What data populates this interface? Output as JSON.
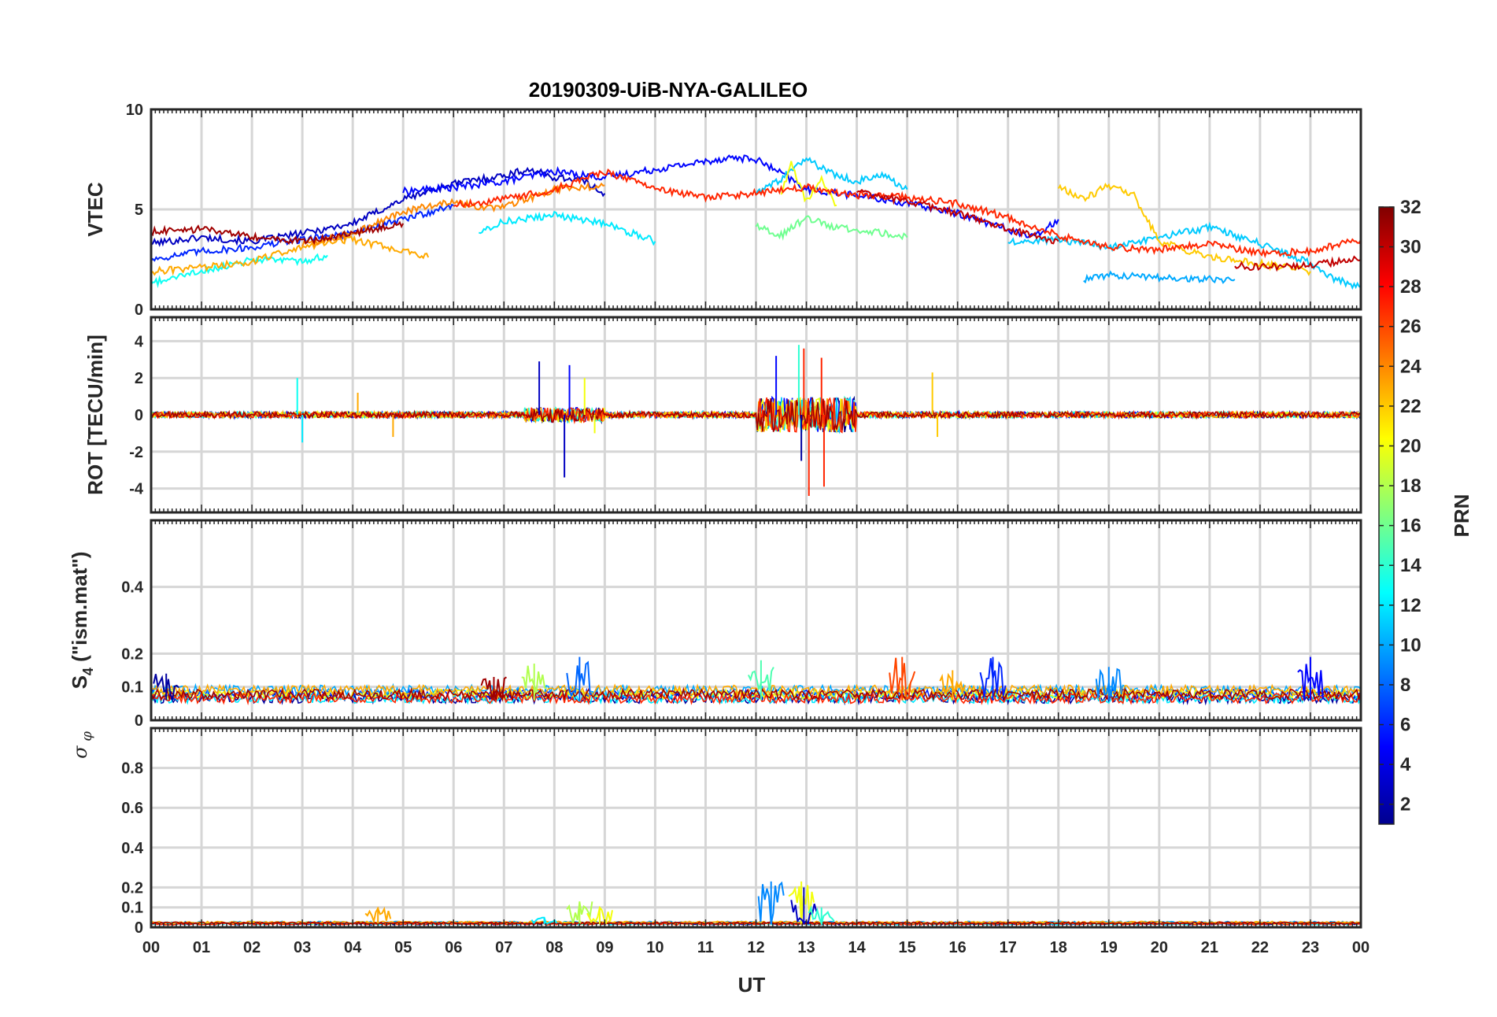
{
  "figure": {
    "title": "20190309-UiB-NYA-GALILEO",
    "xlabel": "UT",
    "x_ticks": [
      "00",
      "01",
      "02",
      "03",
      "04",
      "05",
      "06",
      "07",
      "08",
      "09",
      "10",
      "11",
      "12",
      "13",
      "14",
      "15",
      "16",
      "17",
      "18",
      "19",
      "20",
      "21",
      "22",
      "23",
      "00"
    ]
  },
  "colorbar": {
    "label": "PRN",
    "range": [
      1,
      32
    ],
    "ticks": [
      "2",
      "4",
      "6",
      "8",
      "10",
      "12",
      "14",
      "16",
      "18",
      "20",
      "22",
      "24",
      "26",
      "28",
      "30",
      "32"
    ],
    "colormap": "jet"
  },
  "chart_data": [
    {
      "type": "line",
      "title": "20190309-UiB-NYA-GALILEO",
      "ylabel": "VTEC",
      "xlabel": "",
      "xlim": [
        0,
        24
      ],
      "ylim": [
        0,
        10
      ],
      "y_ticks": [
        "0",
        "5",
        "10"
      ],
      "grid": true,
      "series": [
        {
          "prn": 3,
          "x": [
            0,
            1,
            2,
            3,
            4,
            5,
            6,
            7,
            7.5,
            8,
            8.5,
            9
          ],
          "y": [
            3.3,
            3.6,
            3.4,
            3.8,
            4.3,
            5.5,
            6.3,
            6.7,
            7.0,
            6.6,
            6.5,
            5.8
          ]
        },
        {
          "prn": 5,
          "x": [
            5,
            6,
            7,
            8,
            9,
            10,
            11,
            11.5,
            12,
            12.5,
            13,
            14,
            15,
            16,
            17,
            17.5,
            18
          ],
          "y": [
            5.9,
            6.1,
            6.4,
            6.9,
            6.6,
            7.0,
            7.4,
            7.6,
            7.5,
            6.8,
            6.0,
            5.7,
            5.3,
            4.8,
            4.0,
            3.6,
            4.5
          ]
        },
        {
          "prn": 6,
          "x": [
            0,
            1,
            2,
            3,
            4,
            5,
            6
          ],
          "y": [
            2.5,
            2.9,
            3.1,
            3.5,
            3.8,
            4.5,
            5.2
          ]
        },
        {
          "prn": 10,
          "x": [
            18.5,
            19,
            20,
            21,
            21.5
          ],
          "y": [
            1.5,
            1.7,
            1.6,
            1.5,
            1.5
          ]
        },
        {
          "prn": 13,
          "x": [
            0,
            1,
            2,
            3,
            3.5
          ],
          "y": [
            1.3,
            1.9,
            2.5,
            2.4,
            2.7
          ]
        },
        {
          "prn": 12,
          "x": [
            6.5,
            7,
            8,
            9,
            10
          ],
          "y": [
            3.9,
            4.4,
            4.7,
            4.3,
            3.4
          ]
        },
        {
          "prn": 11,
          "x": [
            12,
            12.5,
            13,
            13.5,
            14,
            14.5,
            15
          ],
          "y": [
            5.8,
            6.5,
            7.5,
            6.8,
            6.4,
            6.7,
            6.0
          ]
        },
        {
          "prn": 11,
          "x": [
            17,
            18,
            19,
            20,
            21,
            22,
            23,
            23.5,
            24
          ],
          "y": [
            3.4,
            3.5,
            3.1,
            3.6,
            4.1,
            3.3,
            2.3,
            1.5,
            1.1
          ]
        },
        {
          "prn": 16,
          "x": [
            12,
            12.5,
            13,
            13.5,
            14,
            14.5,
            15
          ],
          "y": [
            4.2,
            3.7,
            4.6,
            4.1,
            4.0,
            3.8,
            3.6
          ]
        },
        {
          "prn": 20,
          "x": [
            12.5,
            12.7,
            13,
            13.3,
            13.6
          ],
          "y": [
            5.8,
            7.3,
            5.4,
            6.5,
            5.2
          ]
        },
        {
          "prn": 22,
          "x": [
            18,
            18.5,
            19,
            19.5,
            20,
            21,
            22,
            23
          ],
          "y": [
            6.1,
            5.5,
            6.2,
            5.7,
            3.4,
            2.6,
            2.3,
            1.9
          ]
        },
        {
          "prn": 23,
          "x": [
            0,
            1,
            2,
            3,
            4,
            5,
            5.5
          ],
          "y": [
            1.9,
            2.1,
            2.4,
            3.1,
            3.5,
            2.9,
            2.6
          ]
        },
        {
          "prn": 24,
          "x": [
            3,
            4,
            5,
            6,
            6.5,
            7,
            8,
            9
          ],
          "y": [
            3.2,
            3.8,
            4.9,
            5.4,
            5.1,
            5.1,
            6.0,
            6.2
          ]
        },
        {
          "prn": 27,
          "x": [
            6,
            7,
            8,
            9,
            10,
            11,
            12,
            13,
            14,
            15,
            16,
            17,
            18,
            19,
            20,
            21,
            22,
            23,
            24
          ],
          "y": [
            5.2,
            5.5,
            6.0,
            6.9,
            6.0,
            5.6,
            5.8,
            6.1,
            5.7,
            5.6,
            5.3,
            4.6,
            3.7,
            3.1,
            3.0,
            3.3,
            2.8,
            2.9,
            3.5
          ]
        },
        {
          "prn": 31,
          "x": [
            0,
            1,
            2,
            3,
            4,
            5
          ],
          "y": [
            3.9,
            4.0,
            3.6,
            3.4,
            3.8,
            4.3
          ]
        },
        {
          "prn": 30,
          "x": [
            14,
            15,
            16,
            17,
            18
          ],
          "y": [
            5.9,
            5.4,
            4.8,
            4.0,
            3.4
          ]
        },
        {
          "prn": 30,
          "x": [
            21.5,
            22,
            23,
            24
          ],
          "y": [
            2.2,
            2.1,
            2.2,
            2.5
          ]
        }
      ]
    },
    {
      "type": "line",
      "ylabel": "ROT [TECU/min]",
      "xlabel": "",
      "xlim": [
        0,
        24
      ],
      "ylim": [
        -5.3,
        5.3
      ],
      "y_ticks": [
        "-4",
        "-2",
        "0",
        "2",
        "4"
      ],
      "grid": true,
      "spikes": [
        {
          "prn": 13,
          "x": 2.9,
          "y": 2.0
        },
        {
          "prn": 12,
          "x": 3.0,
          "y": -1.5
        },
        {
          "prn": 23,
          "x": 4.1,
          "y": 1.2
        },
        {
          "prn": 23,
          "x": 4.8,
          "y": -1.2
        },
        {
          "prn": 3,
          "x": 7.7,
          "y": 2.9
        },
        {
          "prn": 3,
          "x": 8.2,
          "y": -3.4
        },
        {
          "prn": 5,
          "x": 8.3,
          "y": 2.7
        },
        {
          "prn": 20,
          "x": 8.6,
          "y": 2.0
        },
        {
          "prn": 20,
          "x": 8.8,
          "y": -1.0
        },
        {
          "prn": 5,
          "x": 12.4,
          "y": 3.2
        },
        {
          "prn": 2,
          "x": 12.9,
          "y": -2.5
        },
        {
          "prn": 27,
          "x": 12.95,
          "y": 3.6
        },
        {
          "prn": 27,
          "x": 13.05,
          "y": -4.4
        },
        {
          "prn": 27,
          "x": 13.3,
          "y": 3.1
        },
        {
          "prn": 27,
          "x": 13.35,
          "y": -3.9
        },
        {
          "prn": 14,
          "x": 12.85,
          "y": 3.8
        },
        {
          "prn": 22,
          "x": 15.5,
          "y": 2.3
        },
        {
          "prn": 22,
          "x": 15.6,
          "y": -1.2
        }
      ]
    },
    {
      "type": "line",
      "ylabel": "S4 (\"ism.mat\")",
      "xlabel": "",
      "xlim": [
        0,
        24
      ],
      "ylim": [
        0,
        0.6
      ],
      "y_ticks": [
        "0",
        "0.1",
        "0.2",
        "0.4"
      ],
      "grid": true,
      "bursts": [
        {
          "prn": 2,
          "x": 0.3,
          "y": 0.14
        },
        {
          "prn": 18,
          "x": 7.6,
          "y": 0.17
        },
        {
          "prn": 8,
          "x": 8.5,
          "y": 0.19
        },
        {
          "prn": 31,
          "x": 6.8,
          "y": 0.13
        },
        {
          "prn": 15,
          "x": 12.1,
          "y": 0.18
        },
        {
          "prn": 26,
          "x": 14.9,
          "y": 0.19
        },
        {
          "prn": 23,
          "x": 15.9,
          "y": 0.15
        },
        {
          "prn": 6,
          "x": 16.7,
          "y": 0.19
        },
        {
          "prn": 9,
          "x": 19.0,
          "y": 0.16
        },
        {
          "prn": 5,
          "x": 23.0,
          "y": 0.19
        }
      ]
    },
    {
      "type": "line",
      "ylabel": "σφ",
      "xlabel": "UT",
      "xlim": [
        0,
        24
      ],
      "ylim": [
        0,
        1
      ],
      "y_ticks": [
        "0",
        "0.1",
        "0.2",
        "0.4",
        "0.6",
        "0.8"
      ],
      "grid": true,
      "bursts": [
        {
          "prn": 23,
          "x": 4.5,
          "y": 0.1
        },
        {
          "prn": 12,
          "x": 7.8,
          "y": 0.05
        },
        {
          "prn": 18,
          "x": 8.5,
          "y": 0.13
        },
        {
          "prn": 20,
          "x": 8.9,
          "y": 0.1
        },
        {
          "prn": 9,
          "x": 12.3,
          "y": 0.23
        },
        {
          "prn": 20,
          "x": 12.9,
          "y": 0.23
        },
        {
          "prn": 3,
          "x": 12.95,
          "y": 0.2
        },
        {
          "prn": 14,
          "x": 13.3,
          "y": 0.1
        }
      ]
    }
  ]
}
